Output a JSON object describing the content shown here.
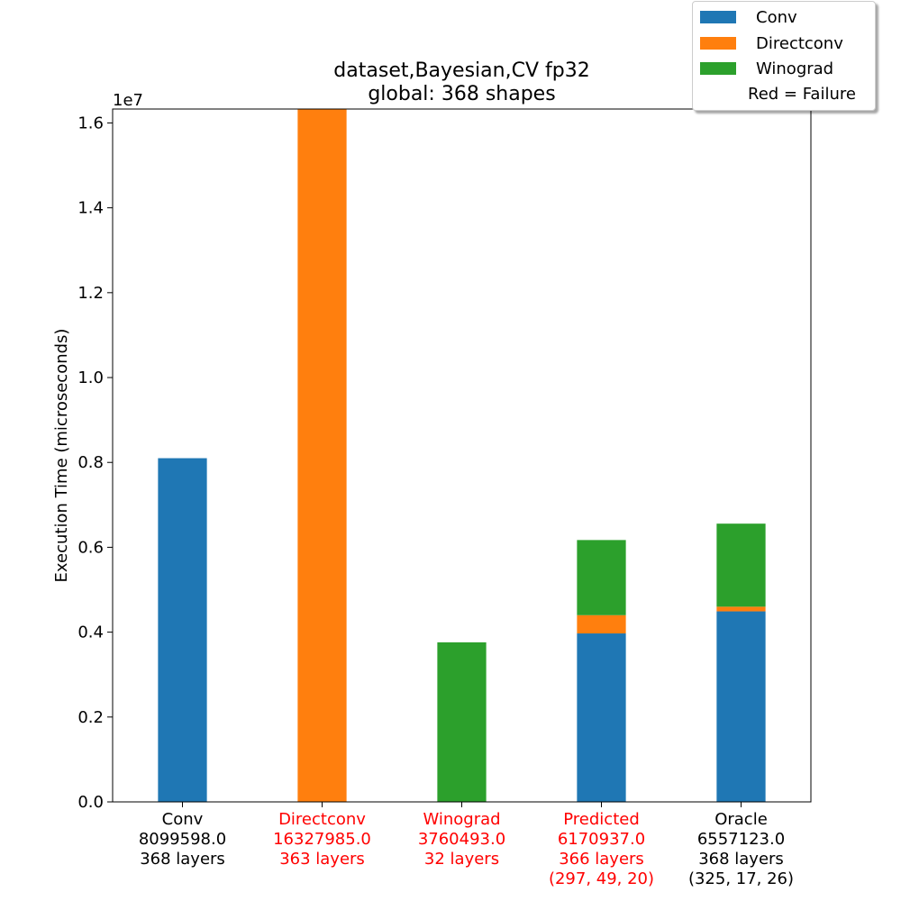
{
  "chart_data": {
    "type": "bar",
    "stacked": true,
    "title": "dataset,Bayesian,CV fp32\nglobal: 368 shapes",
    "ylabel": "Execution Time (microseconds)",
    "y_offset_label": "1e7",
    "ylim": [
      0,
      16327985
    ],
    "yticks": [
      0.0,
      0.2,
      0.4,
      0.6,
      0.8,
      1.0,
      1.2,
      1.4,
      1.6
    ],
    "ytick_multiplier": 10000000,
    "grid": false,
    "legend_position": "top-right",
    "colors": {
      "Conv": "#1f77b4",
      "Directconv": "#ff7f0e",
      "Winograd": "#2ca02c",
      "failure": "#ff0000"
    },
    "categories": [
      {
        "lines": [
          "Conv",
          "8099598.0",
          "368 layers"
        ],
        "failure": false
      },
      {
        "lines": [
          "Directconv",
          "16327985.0",
          "363 layers"
        ],
        "failure": true
      },
      {
        "lines": [
          "Winograd",
          "3760493.0",
          "32 layers"
        ],
        "failure": true
      },
      {
        "lines": [
          "Predicted",
          "6170937.0",
          "366 layers",
          "(297, 49, 20)"
        ],
        "failure": true
      },
      {
        "lines": [
          "Oracle",
          "6557123.0",
          "368 layers",
          "(325, 17, 26)"
        ],
        "failure": false
      }
    ],
    "series": [
      {
        "name": "Conv",
        "values": [
          8099598,
          0,
          0,
          3970000,
          4490000
        ]
      },
      {
        "name": "Directconv",
        "values": [
          0,
          16327985,
          0,
          430000,
          110000
        ]
      },
      {
        "name": "Winograd",
        "values": [
          0,
          0,
          3760493,
          1770937,
          1957123
        ]
      }
    ],
    "legend": [
      "Conv",
      "Directconv",
      "Winograd",
      "Red = Failure"
    ]
  }
}
